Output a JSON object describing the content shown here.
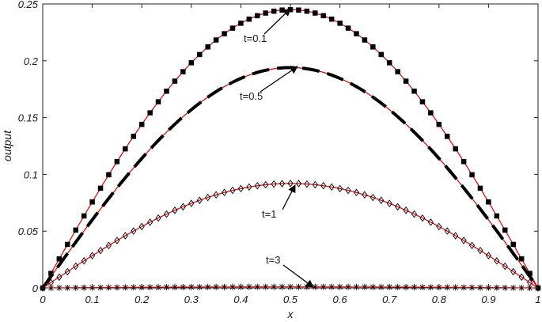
{
  "chart_data": {
    "type": "line",
    "title": "",
    "xlabel": "x",
    "ylabel": "output",
    "xlim": [
      0,
      1
    ],
    "ylim": [
      0,
      0.25
    ],
    "xticks": [
      "0",
      "0.1",
      "0.2",
      "0.3",
      "0.4",
      "0.5",
      "0.6",
      "0.7",
      "0.8",
      "0.9",
      "1"
    ],
    "yticks": [
      "0",
      "0.05",
      "0.1",
      "0.15",
      "0.2",
      "0.25"
    ],
    "grid": false,
    "x": [
      0,
      0.05,
      0.1,
      0.15,
      0.2,
      0.25,
      0.3,
      0.35,
      0.4,
      0.45,
      0.5,
      0.55,
      0.6,
      0.65,
      0.7,
      0.75,
      0.8,
      0.85,
      0.9,
      0.95,
      1
    ],
    "series": [
      {
        "label": "t=0.1",
        "peak": 0.245,
        "style": "dotted-square",
        "values": [
          0,
          0.047,
          0.088,
          0.123,
          0.157,
          0.184,
          0.206,
          0.224,
          0.235,
          0.242,
          0.245,
          0.242,
          0.235,
          0.224,
          0.206,
          0.184,
          0.157,
          0.123,
          0.088,
          0.047,
          0
        ]
      },
      {
        "label": "t=0.5",
        "peak": 0.194,
        "style": "dashed",
        "values": [
          0,
          0.037,
          0.07,
          0.099,
          0.124,
          0.145,
          0.163,
          0.177,
          0.186,
          0.192,
          0.194,
          0.192,
          0.186,
          0.177,
          0.163,
          0.145,
          0.124,
          0.099,
          0.07,
          0.037,
          0
        ]
      },
      {
        "label": "t=1",
        "peak": 0.092,
        "style": "diamond",
        "values": [
          0,
          0.017,
          0.033,
          0.047,
          0.059,
          0.069,
          0.077,
          0.084,
          0.088,
          0.091,
          0.092,
          0.091,
          0.088,
          0.084,
          0.077,
          0.069,
          0.059,
          0.047,
          0.033,
          0.017,
          0
        ]
      },
      {
        "label": "t=3",
        "peak": 0.001,
        "style": "star",
        "values": [
          0,
          0.0002,
          0.0004,
          0.0005,
          0.0006,
          0.0007,
          0.0008,
          0.0009,
          0.001,
          0.001,
          0.001,
          0.001,
          0.001,
          0.0009,
          0.0008,
          0.0007,
          0.0006,
          0.0005,
          0.0004,
          0.0002,
          0
        ]
      }
    ],
    "annotations": [
      {
        "text": "t=0.1",
        "x": 0.5,
        "y": 0.245
      },
      {
        "text": "t=0.5",
        "x": 0.52,
        "y": 0.194
      },
      {
        "text": "t=1",
        "x": 0.5,
        "y": 0.092
      },
      {
        "text": "t=3",
        "x": 0.55,
        "y": 0.0
      }
    ],
    "colors": {
      "exact": "#e00000",
      "marker": "#000000"
    }
  }
}
